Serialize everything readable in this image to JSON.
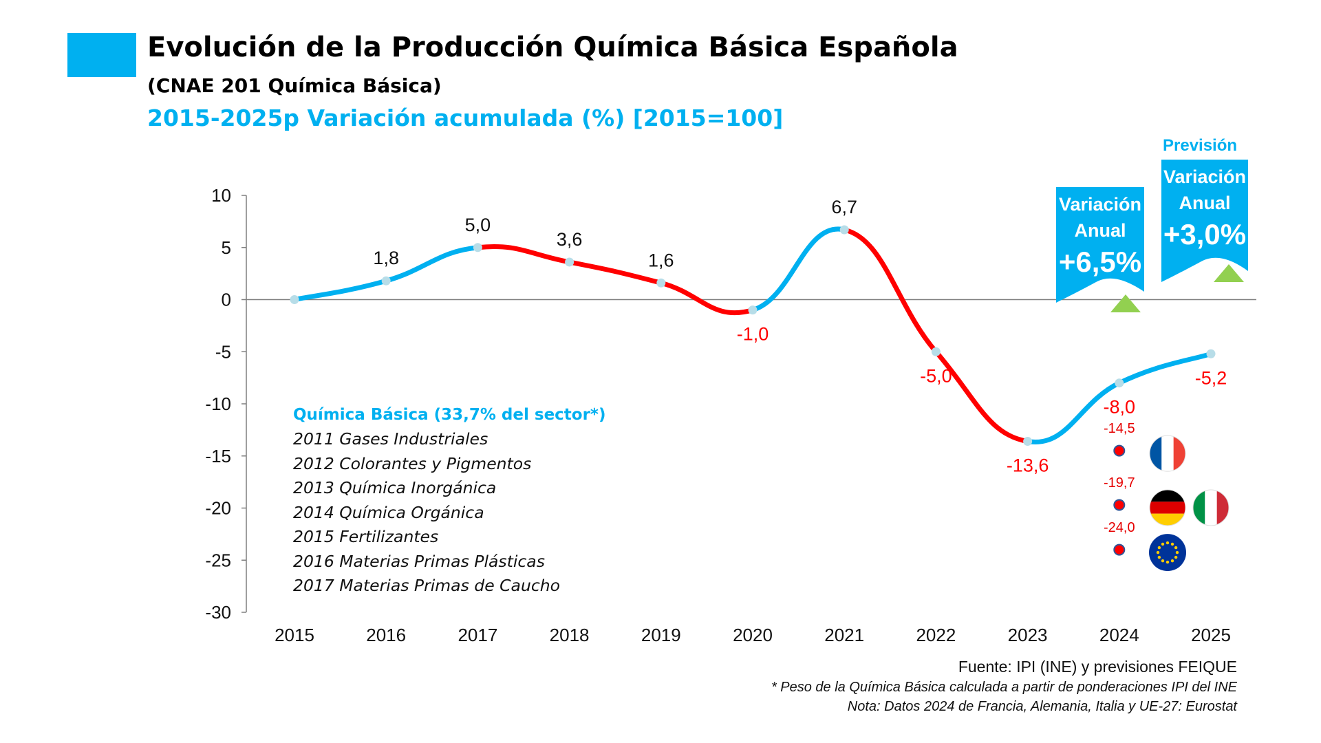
{
  "header": {
    "title": "Evolución de la Producción Química Básica Española",
    "subtitle": "(CNAE 201 Química Básica)",
    "subtitle2": "2015-2025p Variación acumulada (%) [2015=100]"
  },
  "chart_data": {
    "type": "line",
    "title": "Evolución de la Producción Química Básica Española",
    "xlabel": "",
    "ylabel": "",
    "ylim": [
      -30,
      10
    ],
    "yticks": [
      "10",
      "5",
      "0",
      "-5",
      "-10",
      "-15",
      "-20",
      "-25",
      "-30"
    ],
    "ytick_values": [
      10,
      5,
      0,
      -5,
      -10,
      -15,
      -20,
      -25,
      -30
    ],
    "categories": [
      "2015",
      "2016",
      "2017",
      "2018",
      "2019",
      "2020",
      "2021",
      "2022",
      "2023",
      "2024",
      "2025"
    ],
    "values": [
      0,
      1.8,
      5.0,
      3.6,
      1.6,
      -1.0,
      6.7,
      -5.0,
      -13.6,
      -8.0,
      -5.2
    ],
    "data_labels": [
      "",
      "1,8",
      "5,0",
      "3,6",
      "1,6",
      "-1,0",
      "6,7",
      "-5,0",
      "-13,6",
      "-8,0",
      "-5,2"
    ],
    "colors": {
      "increase": "#00b0f0",
      "decrease": "#ff0000",
      "marker": "#b7dde8",
      "axis": "#7f7f7f",
      "positive_label": "#111111",
      "negative_label": "#ff0000"
    },
    "comparisons_2024": [
      {
        "value": -14.5,
        "label": "-14,5",
        "countries": [
          "France"
        ],
        "icons": [
          "france-flag-icon"
        ]
      },
      {
        "value": -19.7,
        "label": "-19,7",
        "countries": [
          "Germany",
          "Italy"
        ],
        "icons": [
          "germany-flag-icon",
          "italy-flag-icon"
        ]
      },
      {
        "value": -24.0,
        "label": "-24,0",
        "countries": [
          "EU-27"
        ],
        "icons": [
          "eu-flag-icon"
        ]
      }
    ],
    "grid": false
  },
  "legend": {
    "heading": "Química Básica (33,7% del sector*)",
    "items": [
      "2011 Gases Industriales",
      "2012 Colorantes y Pigmentos",
      "2013 Química Inorgánica",
      "2014 Química Orgánica",
      "2015 Fertilizantes",
      "2016 Materias Primas Plásticas",
      "2017 Materias Primas de Caucho"
    ]
  },
  "annotations": {
    "banner_2024": {
      "line1": "Variación",
      "line2": "Anual",
      "value": "+6,5%"
    },
    "prevision_label": "Previsión",
    "banner_2025": {
      "line1": "Variación",
      "line2": "Anual",
      "value": "+3,0%"
    },
    "up_arrow_color": "#92d050"
  },
  "footer": {
    "source": "Fuente: IPI (INE) y previsiones FEIQUE",
    "note1": "* Peso de la Química Básica calculada a partir de ponderaciones IPI del INE",
    "note2": "Nota: Datos 2024 de Francia, Alemania, Italia y UE-27: Eurostat"
  }
}
